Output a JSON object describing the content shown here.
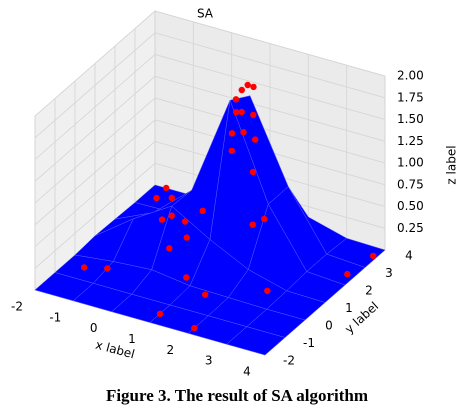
{
  "chart_data": {
    "type": "surface3d",
    "title": "SA",
    "x_label": "x label",
    "y_label": "y label",
    "z_label": "z label",
    "x_label_color": "#e00000",
    "y_label_color": "#008000",
    "z_label_color": "#0000cc",
    "xlim": [
      -2,
      4
    ],
    "ylim": [
      -2,
      4
    ],
    "zlim": [
      0,
      2
    ],
    "xticks": [
      -2,
      -1,
      0,
      1,
      2,
      3,
      4
    ],
    "yticks": [
      -2,
      -1,
      0,
      1,
      2,
      3,
      4
    ],
    "zticks": [
      0.25,
      {
        "value": 0.5,
        "label": "0.50"
      },
      0.75,
      {
        "value": 1,
        "label": "1.00"
      },
      1.25,
      {
        "value": 1.5,
        "label": "1.50"
      },
      1.75,
      {
        "value": 2,
        "label": "2.00"
      }
    ],
    "grid": true,
    "surface": {
      "color": "#0000ff",
      "x": [
        -2,
        -1,
        0,
        1,
        2,
        3,
        4
      ],
      "y": [
        -2,
        -1,
        0,
        1,
        2,
        3,
        4
      ],
      "z": [
        [
          0,
          0,
          0,
          0,
          0,
          0,
          0
        ],
        [
          0,
          0,
          0,
          0,
          0,
          0,
          0
        ],
        [
          0,
          0.05,
          0.08,
          0.02,
          0.01,
          0,
          0
        ],
        [
          0.02,
          0.34,
          0.61,
          0.35,
          0.13,
          0.01,
          0
        ],
        [
          0.01,
          0.21,
          0.59,
          1.75,
          0.68,
          0.03,
          0
        ],
        [
          0,
          0.01,
          0.27,
          1.6,
          0.68,
          0.03,
          0
        ],
        [
          0,
          0,
          0.05,
          0.27,
          0.13,
          0.01,
          0
        ]
      ]
    },
    "points": {
      "color": "#ff0000",
      "x": [
        1.2,
        1.1,
        1.3,
        1.0,
        1.2,
        1.4,
        0.9,
        1.3,
        1.0,
        1.5,
        1.1,
        1.6,
        -0.3,
        -0.1,
        -0.5,
        0.0,
        -0.2,
        0.3,
        0.6,
        0.5,
        1.8,
        2.0,
        0.2,
        -1.5,
        -1.0,
        1.0,
        2.0,
        2.6,
        3.8,
        3.9,
        1.5,
        0.8
      ],
      "y": [
        2.5,
        2.4,
        2.6,
        2.3,
        2.2,
        2.4,
        2.5,
        2.1,
        2.1,
        2.3,
        1.9,
        2.0,
        1.3,
        1.2,
        1.2,
        1.0,
        0.9,
        1.1,
        1.4,
        0.8,
        1.6,
        1.8,
        0.5,
        -0.5,
        -0.3,
        -1.5,
        -1.7,
        0.8,
        2.5,
        3.6,
        -0.2,
        0.2
      ],
      "z": [
        1.85,
        1.8,
        1.82,
        1.7,
        1.6,
        1.55,
        1.5,
        1.4,
        1.35,
        1.3,
        1.2,
        1.0,
        0.72,
        0.65,
        0.6,
        0.5,
        0.45,
        0.45,
        0.55,
        0.35,
        0.5,
        0.55,
        0.25,
        0.02,
        0.03,
        0,
        0,
        0,
        0,
        0,
        0.02,
        0.05
      ]
    }
  },
  "caption": "Figure 3.    The result of SA algorithm"
}
